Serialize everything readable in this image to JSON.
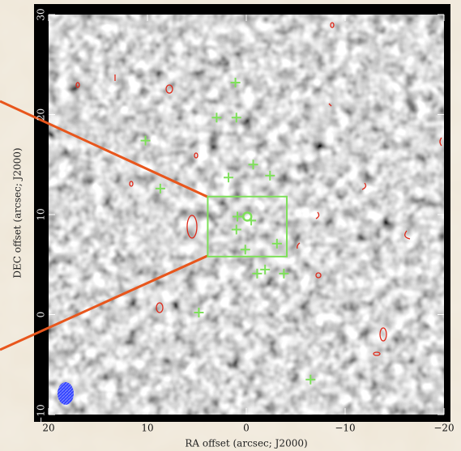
{
  "chart_data": {
    "type": "scatter",
    "xlabel": "RA offset (arcsec; J2000)",
    "ylabel": "DEC offset (arcsec; J2000)",
    "xlim": [
      20,
      -20
    ],
    "ylim": [
      -10,
      30
    ],
    "xticks": [
      20,
      10,
      0,
      {
        "value": -10,
        "label": "−10"
      },
      {
        "value": -20,
        "label": "−20"
      }
    ],
    "yticks": [
      {
        "value": -10,
        "label": "−10"
      },
      0,
      10,
      20,
      30
    ],
    "x": [
      1.1,
      3.0,
      1.0,
      10.2,
      -0.7,
      1.8,
      -2.4,
      8.7,
      0.9,
      -0.5,
      1.0,
      -3.1,
      0.1,
      -1.9,
      -1.1,
      -3.8,
      4.8,
      -6.5
    ],
    "values": [
      23.2,
      19.7,
      19.7,
      17.4,
      15.0,
      13.7,
      13.9,
      12.6,
      9.8,
      9.4,
      8.5,
      7.1,
      6.5,
      4.5,
      4.1,
      4.1,
      0.2,
      -6.5
    ],
    "color": "#7ee05a",
    "circle": [
      -0.1,
      9.8
    ],
    "box": [
      [
        3.9,
        -4.1
      ],
      [
        5.8,
        11.8
      ]
    ]
  }
}
